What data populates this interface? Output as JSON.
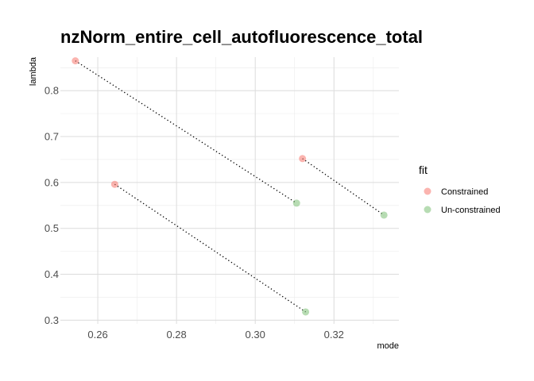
{
  "chart_data": {
    "type": "scatter",
    "title": "nzNorm_entire_cell_autofluorescence_total",
    "xlabel": "mode",
    "ylabel": "lambda",
    "xlim": [
      0.2505,
      0.3365
    ],
    "ylim": [
      0.292,
      0.873
    ],
    "x_ticks": [
      0.26,
      0.28,
      0.3,
      0.32
    ],
    "x_tick_labels": [
      "0.26",
      "0.28",
      "0.30",
      "0.32"
    ],
    "y_ticks": [
      0.3,
      0.4,
      0.5,
      0.6,
      0.7,
      0.8
    ],
    "y_tick_labels": [
      "0.3",
      "0.4",
      "0.5",
      "0.6",
      "0.7",
      "0.8"
    ],
    "grid": true,
    "legend": {
      "title": "fit",
      "position": "right"
    },
    "series": [
      {
        "name": "Constrained",
        "color": "#F8766D",
        "points": [
          {
            "x": 0.2543,
            "y": 0.865
          },
          {
            "x": 0.2643,
            "y": 0.596
          },
          {
            "x": 0.312,
            "y": 0.652
          }
        ]
      },
      {
        "name": "Un-constrained",
        "color": "#7CBF74",
        "points": [
          {
            "x": 0.3105,
            "y": 0.555
          },
          {
            "x": 0.3128,
            "y": 0.318
          },
          {
            "x": 0.3327,
            "y": 0.529
          }
        ]
      }
    ],
    "connectors": [
      {
        "from": {
          "x": 0.2543,
          "y": 0.865
        },
        "to": {
          "x": 0.3105,
          "y": 0.555
        }
      },
      {
        "from": {
          "x": 0.2643,
          "y": 0.596
        },
        "to": {
          "x": 0.3128,
          "y": 0.318
        }
      },
      {
        "from": {
          "x": 0.312,
          "y": 0.652
        },
        "to": {
          "x": 0.3327,
          "y": 0.529
        }
      }
    ]
  }
}
